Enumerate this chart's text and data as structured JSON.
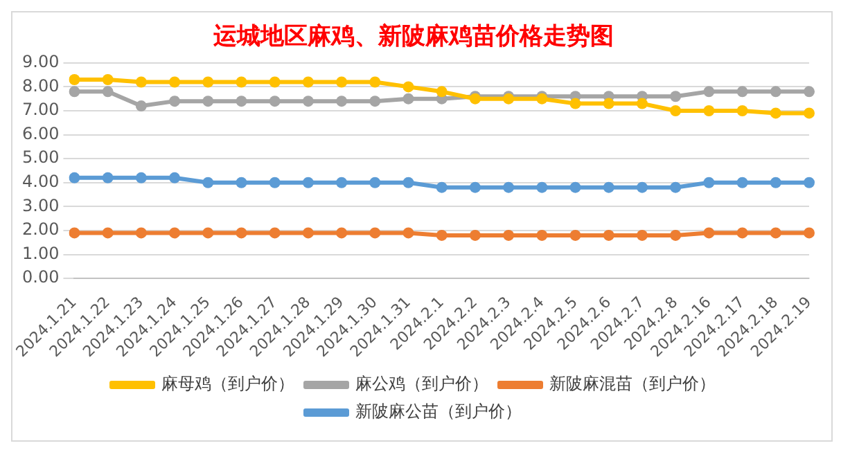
{
  "chart_data": {
    "type": "line",
    "title": "运城地区麻鸡、新陂麻鸡苗价格走势图",
    "categories": [
      "2024.1.21",
      "2024.1.22",
      "2024.1.23",
      "2024.1.24",
      "2024.1.25",
      "2024.1.26",
      "2024.1.27",
      "2024.1.28",
      "2024.1.29",
      "2024.1.30",
      "2024.1.31",
      "2024.2.1",
      "2024.2.2",
      "2024.2.3",
      "2024.2.4",
      "2024.2.5",
      "2024.2.6",
      "2024.2.7",
      "2024.2.8",
      "2024.2.16",
      "2024.2.17",
      "2024.2.18",
      "2024.2.19"
    ],
    "series": [
      {
        "name": "新陂麻公苗（到户价）",
        "color": "#5b9bd5",
        "values": [
          4.2,
          4.2,
          4.2,
          4.2,
          4.0,
          4.0,
          4.0,
          4.0,
          4.0,
          4.0,
          4.0,
          3.8,
          3.8,
          3.8,
          3.8,
          3.8,
          3.8,
          3.8,
          3.8,
          4.0,
          4.0,
          4.0,
          4.0
        ]
      },
      {
        "name": "新陂麻混苗（到户价）",
        "color": "#ed7d31",
        "values": [
          1.9,
          1.9,
          1.9,
          1.9,
          1.9,
          1.9,
          1.9,
          1.9,
          1.9,
          1.9,
          1.9,
          1.8,
          1.8,
          1.8,
          1.8,
          1.8,
          1.8,
          1.8,
          1.8,
          1.9,
          1.9,
          1.9,
          1.9
        ]
      },
      {
        "name": "麻公鸡（到户价）",
        "color": "#a5a5a5",
        "values": [
          7.8,
          7.8,
          7.2,
          7.4,
          7.4,
          7.4,
          7.4,
          7.4,
          7.4,
          7.4,
          7.5,
          7.5,
          7.6,
          7.6,
          7.6,
          7.6,
          7.6,
          7.6,
          7.6,
          7.8,
          7.8,
          7.8,
          7.8
        ]
      },
      {
        "name": "麻母鸡（到户价）",
        "color": "#ffc000",
        "values": [
          8.3,
          8.3,
          8.2,
          8.2,
          8.2,
          8.2,
          8.2,
          8.2,
          8.2,
          8.2,
          8.0,
          7.8,
          7.5,
          7.5,
          7.5,
          7.3,
          7.3,
          7.3,
          7.0,
          7.0,
          7.0,
          6.9,
          6.9
        ]
      }
    ],
    "ylim": [
      0,
      9
    ],
    "yticks": [
      {
        "value": 0,
        "label": "0.00"
      },
      {
        "value": 1,
        "label": "1.00"
      },
      {
        "value": 2,
        "label": "2.00"
      },
      {
        "value": 3,
        "label": "3.00"
      },
      {
        "value": 4,
        "label": "4.00"
      },
      {
        "value": 5,
        "label": "5.00"
      },
      {
        "value": 6,
        "label": "6.00"
      },
      {
        "value": 7,
        "label": "7.00"
      },
      {
        "value": 8,
        "label": "8.00"
      },
      {
        "value": 9,
        "label": "9.00"
      }
    ],
    "grid": "y",
    "legend": "bottom",
    "marker": "circle",
    "line_style": "solid"
  }
}
